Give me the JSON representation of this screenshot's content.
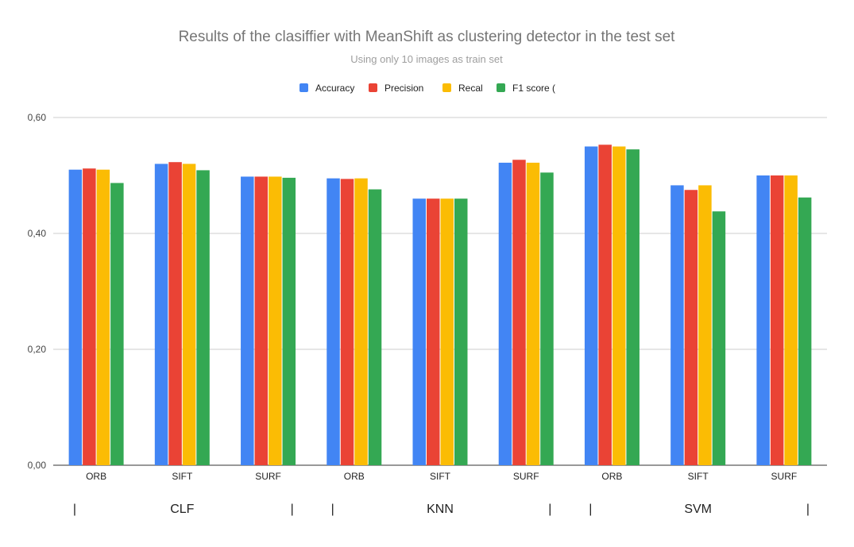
{
  "chart_data": {
    "type": "bar",
    "title": "Results of the clasiffier with MeanShift as clustering detector in the test set",
    "subtitle": "Using only 10 images as train set",
    "xlabel": "",
    "ylabel": "",
    "ylim": [
      0,
      0.6
    ],
    "yticks": [
      "0,00",
      "0,20",
      "0,40",
      "0,60"
    ],
    "ytick_values": [
      0,
      0.2,
      0.4,
      0.6
    ],
    "categories": [
      "ORB",
      "SIFT",
      "SURF",
      "ORB",
      "SIFT",
      "SURF",
      "ORB",
      "SIFT",
      "SURF"
    ],
    "groups": [
      {
        "label": "CLF",
        "left_bar": "|",
        "right_bar": "|"
      },
      {
        "label": "KNN",
        "left_bar": "|",
        "right_bar": "|"
      },
      {
        "label": "SVM",
        "left_bar": "|",
        "right_bar": "|"
      }
    ],
    "legend_position": "top",
    "grid": true,
    "series": [
      {
        "name": "Accuracy",
        "color": "#4285f4",
        "values": [
          0.51,
          0.52,
          0.498,
          0.495,
          0.46,
          0.522,
          0.55,
          0.483,
          0.5
        ]
      },
      {
        "name": "Precision",
        "color": "#ea4335",
        "values": [
          0.512,
          0.523,
          0.498,
          0.494,
          0.46,
          0.527,
          0.553,
          0.475,
          0.5
        ]
      },
      {
        "name": "Recal",
        "color": "#fbbc04",
        "values": [
          0.51,
          0.52,
          0.498,
          0.495,
          0.46,
          0.522,
          0.55,
          0.483,
          0.5
        ]
      },
      {
        "name": "F1 score (",
        "color": "#34a853",
        "values": [
          0.487,
          0.509,
          0.496,
          0.476,
          0.46,
          0.505,
          0.545,
          0.438,
          0.462
        ]
      }
    ]
  }
}
